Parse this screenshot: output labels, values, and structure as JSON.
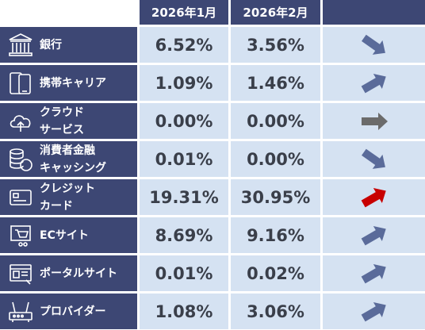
{
  "header": {
    "month1": "2026年1月",
    "month2": "2026年2月",
    "trend": ""
  },
  "colors": {
    "header_bg": "#3d4774",
    "cell_bg": "#d5e2f2",
    "up_arrow": "#5a6b9a",
    "down_arrow": "#5a6b9a",
    "flat_arrow": "#6b6b6b",
    "highlight_up": "#c80000"
  },
  "rows": [
    {
      "label_l1": "銀行",
      "label_l2": "",
      "icon": "bank-icon",
      "jan": "6.52%",
      "feb": "3.56%",
      "trend": "down"
    },
    {
      "label_l1": "携帯キャリア",
      "label_l2": "",
      "icon": "mobile-phone-icon",
      "jan": "1.09%",
      "feb": "1.46%",
      "trend": "up"
    },
    {
      "label_l1": "クラウド",
      "label_l2": "サービス",
      "icon": "cloud-upload-icon",
      "jan": "0.00%",
      "feb": "0.00%",
      "trend": "flat"
    },
    {
      "label_l1": "消費者金融",
      "label_l2": "キャッシング",
      "icon": "coin-stack-icon",
      "jan": "0.01%",
      "feb": "0.00%",
      "trend": "down"
    },
    {
      "label_l1": "クレジット",
      "label_l2": "カード",
      "icon": "credit-card-icon",
      "jan": "19.31%",
      "feb": "30.95%",
      "trend": "up-red"
    },
    {
      "label_l1": "ECサイト",
      "label_l2": "",
      "icon": "shopping-cart-icon",
      "jan": "8.69%",
      "feb": "9.16%",
      "trend": "up"
    },
    {
      "label_l1": "ポータルサイト",
      "label_l2": "",
      "icon": "web-portal-icon",
      "jan": "0.01%",
      "feb": "0.02%",
      "trend": "up"
    },
    {
      "label_l1": "プロバイダー",
      "label_l2": "",
      "icon": "router-icon",
      "jan": "1.08%",
      "feb": "3.06%",
      "trend": "up"
    }
  ]
}
